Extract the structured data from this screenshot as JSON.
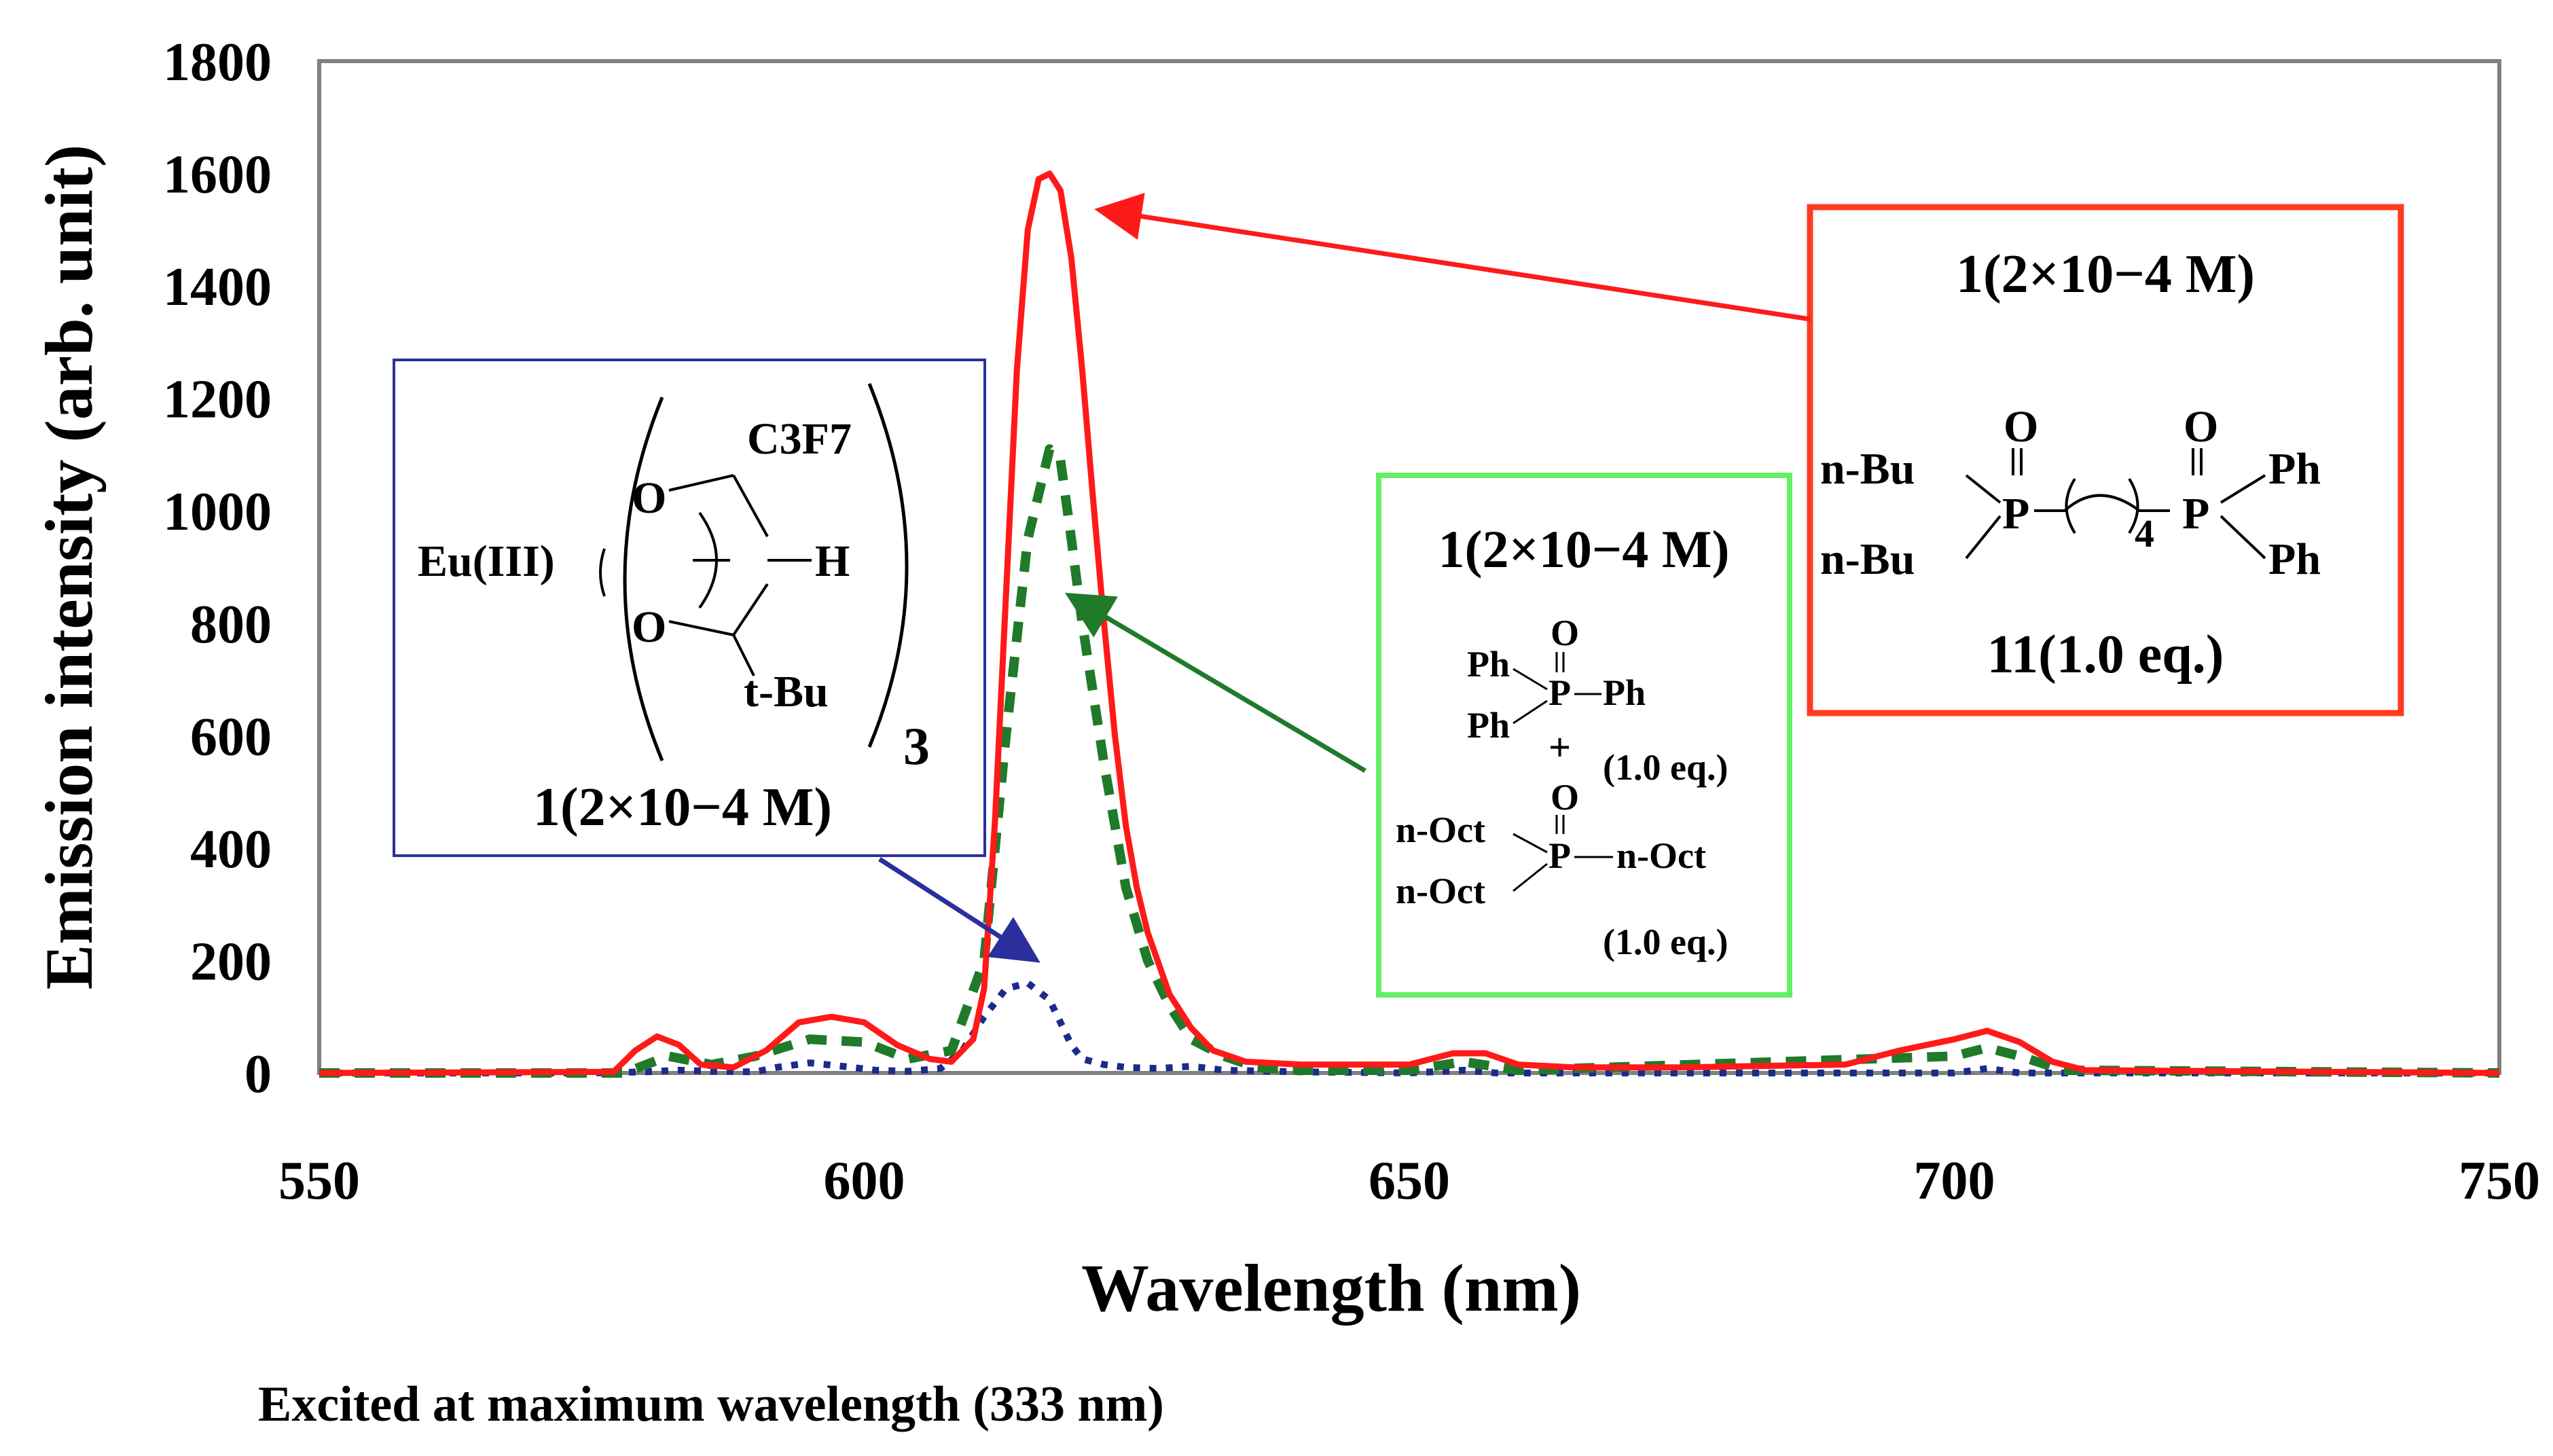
{
  "chart_data": {
    "type": "line",
    "title": "",
    "xlabel": "Wavelength (nm)",
    "ylabel": "Emission intensity (arb. unit)",
    "xlim": [
      550,
      750
    ],
    "ylim": [
      0,
      1800
    ],
    "xticks": [
      "550",
      "600",
      "650",
      "700",
      "750"
    ],
    "yticks": [
      "0",
      "200",
      "400",
      "600",
      "800",
      "1000",
      "1200",
      "1400",
      "1600",
      "1800"
    ],
    "grid": false,
    "note": "Excited at maximum wavelength (333 nm)",
    "colors": {
      "blue": "#1c2a8c",
      "green": "#1f7a2a",
      "red": "#ff1a1a",
      "red_box": "#ff3b1f",
      "green_box": "#66ee66",
      "blue_box": "#2b2f9e",
      "frame": "#808080"
    },
    "series": [
      {
        "name": "1(2×10−4 M)",
        "color": "#1c2a8c",
        "style": "dotted",
        "x": [
          550,
          575,
          580,
          583,
          586,
          590,
          592,
          595,
          598,
          601,
          604,
          607,
          609,
          611,
          613,
          615,
          617,
          618,
          619,
          620,
          622,
          624,
          627,
          630,
          633,
          640,
          650,
          655,
          658,
          700,
          703,
          706,
          750
        ],
        "y": [
          0,
          0,
          2,
          5,
          3,
          2,
          10,
          18,
          12,
          5,
          3,
          8,
          40,
          100,
          150,
          160,
          130,
          90,
          50,
          25,
          15,
          10,
          8,
          12,
          5,
          2,
          0,
          5,
          0,
          0,
          8,
          0,
          0
        ]
      },
      {
        "name": "1(2×10−4 M) + Ph3P=O (1.0 eq.) + n-Oct3P=O (1.0 eq.)",
        "color": "#1f7a2a",
        "style": "dashed",
        "x": [
          550,
          578,
          582,
          586,
          590,
          595,
          600,
          604,
          608,
          611,
          613,
          615,
          617,
          618,
          619,
          620,
          622,
          624,
          626,
          628,
          630,
          633,
          636,
          640,
          650,
          655,
          660,
          700,
          703,
          706,
          710,
          750
        ],
        "y": [
          0,
          0,
          30,
          15,
          30,
          60,
          55,
          25,
          40,
          200,
          600,
          950,
          1110,
          1090,
          950,
          800,
          550,
          330,
          200,
          120,
          60,
          30,
          10,
          5,
          5,
          20,
          5,
          30,
          45,
          30,
          5,
          0
        ]
      },
      {
        "name": "1(2×10−4 M) + 11(1.0 eq.)",
        "color": "#ff1a1a",
        "style": "solid",
        "x": [
          550,
          577,
          579,
          581,
          583,
          585,
          588,
          591,
          594,
          597,
          600,
          603,
          606,
          608,
          610,
          611,
          612,
          613,
          614,
          615,
          616,
          617,
          618,
          619,
          620,
          621,
          622,
          623,
          624,
          625,
          626,
          628,
          630,
          632,
          635,
          640,
          645,
          650,
          654,
          657,
          660,
          665,
          675,
          690,
          695,
          700,
          703,
          706,
          709,
          712,
          750
        ],
        "y": [
          0,
          2,
          40,
          65,
          50,
          15,
          10,
          40,
          90,
          100,
          90,
          50,
          25,
          20,
          60,
          150,
          450,
          850,
          1250,
          1500,
          1590,
          1600,
          1570,
          1450,
          1250,
          1020,
          800,
          600,
          440,
          330,
          250,
          140,
          80,
          40,
          20,
          15,
          15,
          15,
          35,
          35,
          15,
          10,
          10,
          15,
          40,
          60,
          75,
          55,
          20,
          5,
          0
        ]
      }
    ],
    "annotations": {
      "blue_box": {
        "metal": "Eu(III)",
        "oxygen": "O",
        "substituent_top": "C3F7",
        "hydrogen": "H",
        "substituent_bottom": "t-Bu",
        "count": "3",
        "caption": "1(2×10−4 M)"
      },
      "green_box": {
        "title": "1(2×10−4 M)",
        "oxygen": "O",
        "phosphorus": "P",
        "phenyl": "Ph",
        "plus": "+",
        "eq": "(1.0 eq.)",
        "octyl": "n-Oct"
      },
      "red_box": {
        "title": "1(2×10−4 M)",
        "oxygen": "O",
        "phosphorus": "P",
        "butyl": "n-Bu",
        "phenyl": "Ph",
        "chain": "4",
        "caption": "11(1.0 eq.)"
      }
    }
  }
}
